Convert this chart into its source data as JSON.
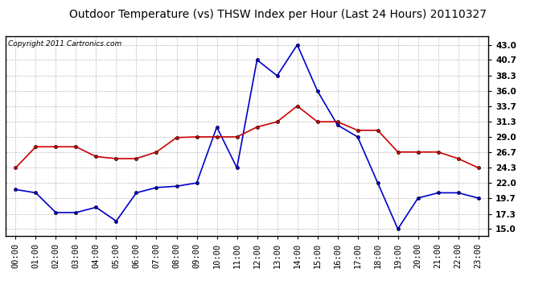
{
  "title": "Outdoor Temperature (vs) THSW Index per Hour (Last 24 Hours) 20110327",
  "copyright": "Copyright 2011 Cartronics.com",
  "hours": [
    "00:00",
    "01:00",
    "02:00",
    "03:00",
    "04:00",
    "05:00",
    "06:00",
    "07:00",
    "08:00",
    "09:00",
    "10:00",
    "11:00",
    "12:00",
    "13:00",
    "14:00",
    "15:00",
    "16:00",
    "17:00",
    "18:00",
    "19:00",
    "20:00",
    "21:00",
    "22:00",
    "23:00"
  ],
  "temp": [
    21.0,
    20.5,
    17.5,
    17.5,
    18.3,
    16.2,
    20.5,
    21.3,
    21.5,
    22.0,
    30.5,
    24.3,
    40.7,
    38.3,
    43.0,
    36.0,
    30.8,
    29.0,
    22.0,
    15.0,
    19.7,
    20.5,
    20.5,
    19.7
  ],
  "thsw": [
    24.3,
    27.5,
    27.5,
    27.5,
    26.0,
    25.7,
    25.7,
    26.7,
    28.9,
    29.0,
    29.0,
    29.0,
    30.5,
    31.3,
    33.7,
    31.3,
    31.3,
    30.0,
    30.0,
    26.7,
    26.7,
    26.7,
    25.7,
    24.3
  ],
  "temp_color": "#0000cc",
  "thsw_color": "#cc0000",
  "bg_color": "#ffffff",
  "grid_color": "#bbbbbb",
  "yticks": [
    15.0,
    17.3,
    19.7,
    22.0,
    24.3,
    26.7,
    29.0,
    31.3,
    33.7,
    36.0,
    38.3,
    40.7,
    43.0
  ],
  "ylim": [
    14.0,
    44.3
  ],
  "markersize": 3,
  "linewidth": 1.2,
  "title_fontsize": 10,
  "tick_fontsize": 7.5,
  "copyright_fontsize": 6.5
}
